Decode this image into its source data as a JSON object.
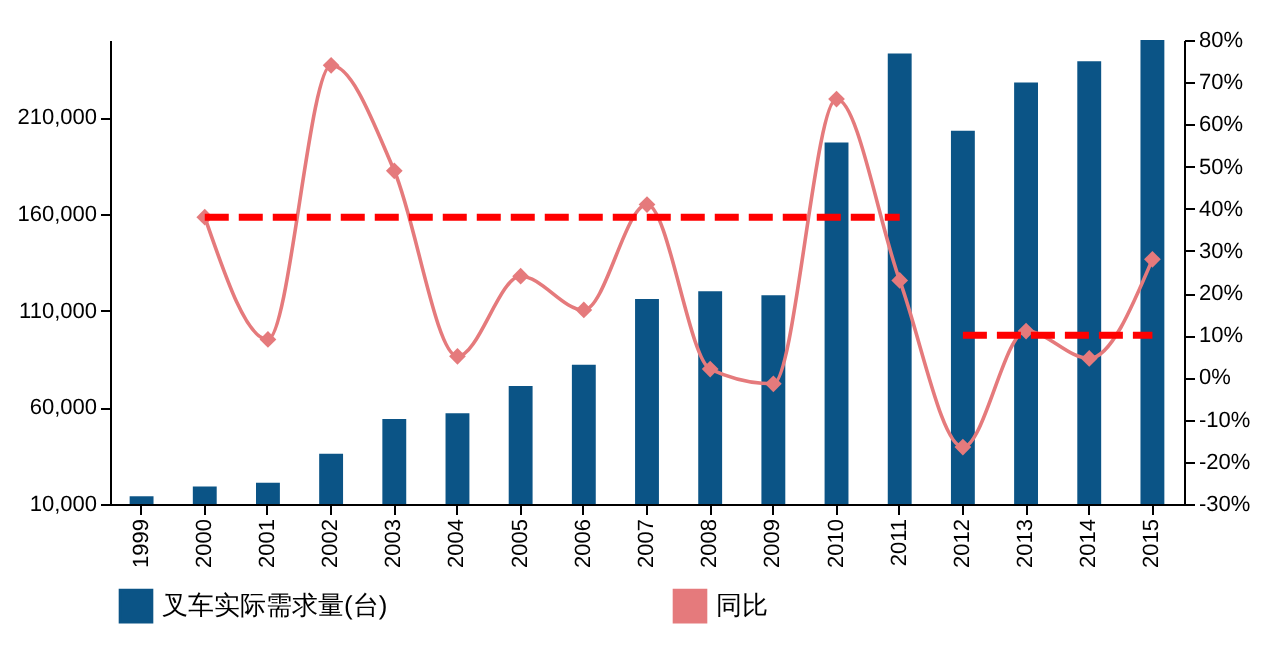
{
  "chart_data": {
    "type": "bar",
    "categories": [
      "1999",
      "2000",
      "2001",
      "2002",
      "2003",
      "2004",
      "2005",
      "2006",
      "2007",
      "2008",
      "2009",
      "2010",
      "2011",
      "2012",
      "2013",
      "2014",
      "2015"
    ],
    "series": [
      {
        "name": "叉车实际需求量(台)",
        "color": "#0b5486",
        "values": [
          14000,
          19000,
          21000,
          36000,
          54000,
          57000,
          71000,
          82000,
          116000,
          120000,
          118000,
          197000,
          243000,
          203000,
          228000,
          239000,
          250000
        ]
      },
      {
        "name": "同比",
        "type": "line",
        "axis": "y2",
        "color": "#e57a7c",
        "marker": "diamond",
        "values": [
          null,
          38,
          9,
          74,
          49,
          5,
          24,
          16,
          41,
          2,
          -1.5,
          66,
          23,
          -16.5,
          11,
          4.5,
          28
        ]
      },
      {
        "type": "line",
        "axis": "y2",
        "color": "#ff0000",
        "line_style": "dashed",
        "marker": "none",
        "values": [
          null,
          38,
          38,
          38,
          38,
          38,
          38,
          38,
          38,
          38,
          38,
          38,
          38,
          null,
          null,
          null,
          null
        ]
      },
      {
        "type": "line",
        "axis": "y2",
        "color": "#ff0000",
        "line_style": "dashed",
        "marker": "none",
        "values": [
          null,
          null,
          null,
          null,
          null,
          null,
          null,
          null,
          null,
          null,
          null,
          null,
          null,
          10,
          10,
          10,
          10
        ]
      }
    ],
    "ylim": [
      10000,
      250000
    ],
    "yticks": [
      {
        "value": 10000,
        "label": "10,000"
      },
      {
        "value": 60000,
        "label": "60,000"
      },
      {
        "value": 110000,
        "label": "110,000"
      },
      {
        "value": 160000,
        "label": "160,000"
      },
      {
        "value": 210000,
        "label": "210,000"
      }
    ],
    "y2lim": [
      -30,
      80
    ],
    "y2ticks": [
      {
        "value": -30,
        "label": "-30%"
      },
      {
        "value": -20,
        "label": "-20%"
      },
      {
        "value": -10,
        "label": "-10%"
      },
      {
        "value": 0,
        "label": "0%"
      },
      {
        "value": 10,
        "label": "10%"
      },
      {
        "value": 20,
        "label": "20%"
      },
      {
        "value": 30,
        "label": "30%"
      },
      {
        "value": 40,
        "label": "40%"
      },
      {
        "value": 50,
        "label": "50%"
      },
      {
        "value": 60,
        "label": "60%"
      },
      {
        "value": 70,
        "label": "70%"
      },
      {
        "value": 80,
        "label": "80%"
      }
    ],
    "grid": false,
    "legend": "bottom"
  }
}
